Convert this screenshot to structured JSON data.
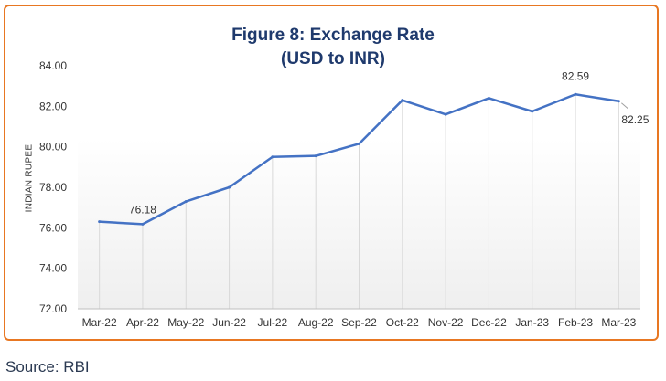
{
  "chart_data": {
    "type": "line",
    "title_line1": "Figure 8: Exchange Rate",
    "title_line2": "(USD to INR)",
    "ylabel": "INDIAN RUPEE",
    "xlabel": "",
    "categories": [
      "Mar-22",
      "Apr-22",
      "May-22",
      "Jun-22",
      "Jul-22",
      "Aug-22",
      "Sep-22",
      "Oct-22",
      "Nov-22",
      "Dec-22",
      "Jan-23",
      "Feb-23",
      "Mar-23"
    ],
    "series": [
      {
        "values": [
          76.3,
          76.18,
          77.3,
          78.0,
          79.5,
          79.55,
          80.15,
          82.3,
          81.6,
          82.4,
          81.75,
          82.59,
          82.25
        ]
      }
    ],
    "data_labels": [
      {
        "index": 1,
        "text": "76.18"
      },
      {
        "index": 11,
        "text": "82.59"
      },
      {
        "index": 12,
        "text": "82.25"
      }
    ],
    "ylim": [
      72,
      84
    ],
    "yticks": [
      "72.00",
      "74.00",
      "76.00",
      "78.00",
      "80.00",
      "82.00",
      "84.00"
    ],
    "ytick_values": [
      72,
      74,
      76,
      78,
      80,
      82,
      84
    ],
    "grid": "vertical",
    "colors": {
      "line": "#4472c4",
      "frame": "#e87722",
      "title": "#1f3a6d",
      "grid": "#d9d9d9"
    }
  },
  "source": "Source: RBI"
}
